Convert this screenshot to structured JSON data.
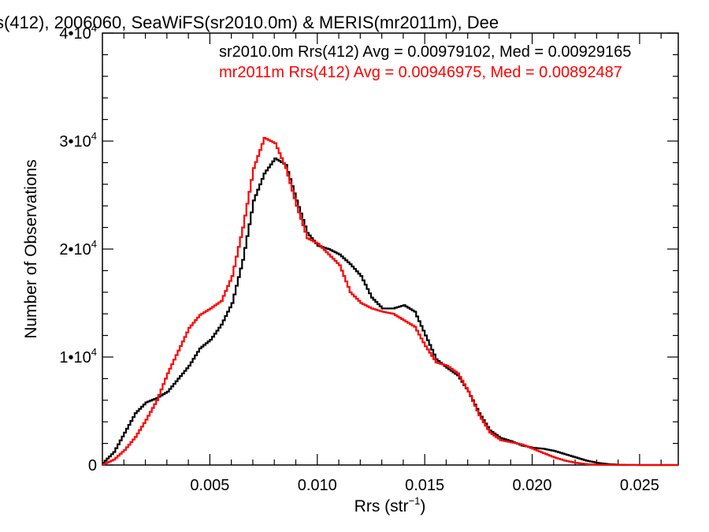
{
  "chart_data": {
    "type": "line",
    "title": "s(412), 2006060, SeaWiFS(sr2010.0m) & MERIS(mr2011m), Dee",
    "xlabel": "Rrs (str",
    "xlabel_sup": "−1",
    "xlabel_end": ")",
    "ylabel": "Number of Observations",
    "xlim": [
      0.0,
      0.0268
    ],
    "ylim": [
      0,
      40000
    ],
    "x_ticks": [
      {
        "value": 0.005,
        "label": "0.005"
      },
      {
        "value": 0.01,
        "label": "0.010"
      },
      {
        "value": 0.015,
        "label": "0.015"
      },
      {
        "value": 0.02,
        "label": "0.020"
      },
      {
        "value": 0.025,
        "label": "0.025"
      }
    ],
    "y_ticks": [
      {
        "value": 0,
        "mant": "0",
        "exp": ""
      },
      {
        "value": 10000,
        "mant": "1•10",
        "exp": "4"
      },
      {
        "value": 20000,
        "mant": "2•10",
        "exp": "4"
      },
      {
        "value": 30000,
        "mant": "3•10",
        "exp": "4"
      },
      {
        "value": 40000,
        "mant": "4•10",
        "exp": "4"
      }
    ],
    "legend": [
      {
        "text": "sr2010.0m Rrs(412) Avg = 0.00979102, Med = 0.00929165",
        "color": "#000000"
      },
      {
        "text": "mr2011m Rrs(412) Avg = 0.00946975, Med = 0.00892487",
        "color": "#ff0000"
      }
    ],
    "series": [
      {
        "color": "#000000",
        "points": [
          [
            0.0,
            200
          ],
          [
            0.0005,
            1200
          ],
          [
            0.001,
            3000
          ],
          [
            0.0015,
            4800
          ],
          [
            0.002,
            5800
          ],
          [
            0.0025,
            6200
          ],
          [
            0.003,
            6800
          ],
          [
            0.0035,
            8000
          ],
          [
            0.004,
            9200
          ],
          [
            0.0045,
            10800
          ],
          [
            0.005,
            11600
          ],
          [
            0.0055,
            13000
          ],
          [
            0.006,
            15000
          ],
          [
            0.0065,
            19000
          ],
          [
            0.007,
            24500
          ],
          [
            0.0075,
            27000
          ],
          [
            0.008,
            28400
          ],
          [
            0.0085,
            27800
          ],
          [
            0.009,
            24500
          ],
          [
            0.0095,
            21500
          ],
          [
            0.01,
            20300
          ],
          [
            0.0105,
            20000
          ],
          [
            0.011,
            19500
          ],
          [
            0.0115,
            18600
          ],
          [
            0.012,
            17500
          ],
          [
            0.0125,
            15500
          ],
          [
            0.013,
            14500
          ],
          [
            0.0135,
            14500
          ],
          [
            0.014,
            14800
          ],
          [
            0.0145,
            14200
          ],
          [
            0.015,
            12000
          ],
          [
            0.0155,
            9800
          ],
          [
            0.016,
            9000
          ],
          [
            0.0165,
            8300
          ],
          [
            0.017,
            6800
          ],
          [
            0.0175,
            4800
          ],
          [
            0.018,
            3200
          ],
          [
            0.0185,
            2500
          ],
          [
            0.019,
            2200
          ],
          [
            0.0195,
            1800
          ],
          [
            0.02,
            1600
          ],
          [
            0.0205,
            1500
          ],
          [
            0.021,
            1300
          ],
          [
            0.0215,
            1000
          ],
          [
            0.022,
            700
          ],
          [
            0.0225,
            400
          ],
          [
            0.023,
            200
          ],
          [
            0.0235,
            80
          ],
          [
            0.024,
            20
          ],
          [
            0.025,
            0
          ],
          [
            0.0268,
            0
          ]
        ]
      },
      {
        "color": "#ff0000",
        "points": [
          [
            0.0,
            50
          ],
          [
            0.0005,
            500
          ],
          [
            0.001,
            1400
          ],
          [
            0.0015,
            2600
          ],
          [
            0.002,
            4200
          ],
          [
            0.0025,
            6000
          ],
          [
            0.003,
            8500
          ],
          [
            0.0035,
            10600
          ],
          [
            0.004,
            12700
          ],
          [
            0.0045,
            13900
          ],
          [
            0.005,
            14500
          ],
          [
            0.0055,
            15200
          ],
          [
            0.006,
            17500
          ],
          [
            0.0065,
            22000
          ],
          [
            0.007,
            27500
          ],
          [
            0.0075,
            30300
          ],
          [
            0.008,
            29800
          ],
          [
            0.0085,
            27500
          ],
          [
            0.009,
            24000
          ],
          [
            0.0095,
            21000
          ],
          [
            0.01,
            20500
          ],
          [
            0.0105,
            19500
          ],
          [
            0.011,
            18500
          ],
          [
            0.0115,
            16000
          ],
          [
            0.012,
            15000
          ],
          [
            0.0125,
            14500
          ],
          [
            0.013,
            14200
          ],
          [
            0.0135,
            14000
          ],
          [
            0.014,
            13400
          ],
          [
            0.0145,
            12800
          ],
          [
            0.015,
            11000
          ],
          [
            0.0155,
            9500
          ],
          [
            0.016,
            9200
          ],
          [
            0.0165,
            8500
          ],
          [
            0.017,
            6800
          ],
          [
            0.0175,
            4600
          ],
          [
            0.018,
            3000
          ],
          [
            0.0185,
            2300
          ],
          [
            0.019,
            2100
          ],
          [
            0.0195,
            1900
          ],
          [
            0.02,
            1500
          ],
          [
            0.0205,
            1100
          ],
          [
            0.021,
            700
          ],
          [
            0.0215,
            400
          ],
          [
            0.022,
            200
          ],
          [
            0.0225,
            80
          ],
          [
            0.023,
            20
          ],
          [
            0.024,
            0
          ],
          [
            0.0268,
            0
          ]
        ]
      }
    ]
  }
}
